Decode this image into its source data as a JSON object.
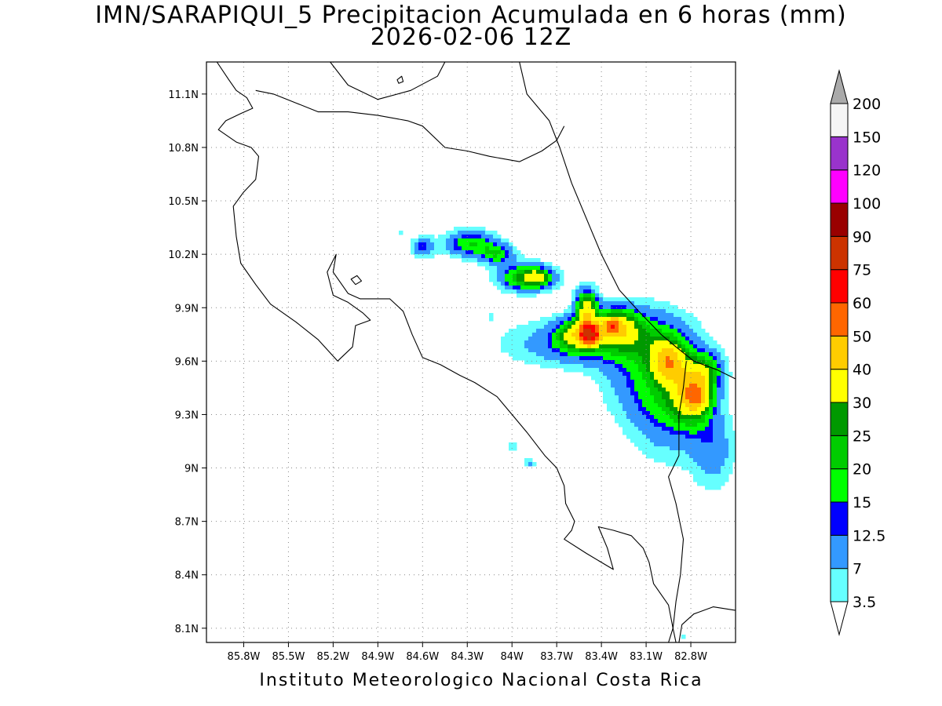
{
  "header": {
    "title_line1": "IMN/SARAPIQUI_5 Precipitacion Acumulada en 6 horas (mm)",
    "title_line2": "2026-02-06 12Z"
  },
  "footer": {
    "credit": "Instituto Meteorologico Nacional Costa Rica"
  },
  "map": {
    "region": "Costa Rica",
    "lon_range": [
      -86.05,
      -82.5
    ],
    "lat_range": [
      8.02,
      11.28
    ],
    "lon_ticks": [
      {
        "value": -85.8,
        "label": "85.8W"
      },
      {
        "value": -85.5,
        "label": "85.5W"
      },
      {
        "value": -85.2,
        "label": "85.2W"
      },
      {
        "value": -84.9,
        "label": "84.9W"
      },
      {
        "value": -84.6,
        "label": "84.6W"
      },
      {
        "value": -84.3,
        "label": "84.3W"
      },
      {
        "value": -84.0,
        "label": "84W"
      },
      {
        "value": -83.7,
        "label": "83.7W"
      },
      {
        "value": -83.4,
        "label": "83.4W"
      },
      {
        "value": -83.1,
        "label": "83.1W"
      },
      {
        "value": -82.8,
        "label": "82.8W"
      }
    ],
    "lat_ticks": [
      {
        "value": 11.1,
        "label": "11.1N"
      },
      {
        "value": 10.8,
        "label": "10.8N"
      },
      {
        "value": 10.5,
        "label": "10.5N"
      },
      {
        "value": 10.2,
        "label": "10.2N"
      },
      {
        "value": 9.9,
        "label": "9.9N"
      },
      {
        "value": 9.6,
        "label": "9.6N"
      },
      {
        "value": 9.3,
        "label": "9.3N"
      },
      {
        "value": 9.0,
        "label": "9N"
      },
      {
        "value": 8.7,
        "label": "8.7N"
      },
      {
        "value": 8.4,
        "label": "8.4N"
      },
      {
        "value": 8.1,
        "label": "8.1N"
      }
    ],
    "grid": "dotted",
    "coastline": [
      [
        -85.98,
        11.28
      ],
      [
        -85.9,
        11.18
      ],
      [
        -85.85,
        11.12
      ],
      [
        -85.78,
        11.08
      ],
      [
        -85.74,
        11.02
      ],
      [
        -85.82,
        10.99
      ],
      [
        -85.92,
        10.95
      ],
      [
        -85.97,
        10.9
      ],
      [
        -85.85,
        10.83
      ],
      [
        -85.75,
        10.8
      ],
      [
        -85.7,
        10.75
      ],
      [
        -85.72,
        10.62
      ],
      [
        -85.8,
        10.55
      ],
      [
        -85.87,
        10.47
      ],
      [
        -85.85,
        10.3
      ],
      [
        -85.82,
        10.15
      ],
      [
        -85.72,
        10.03
      ],
      [
        -85.62,
        9.92
      ],
      [
        -85.45,
        9.82
      ],
      [
        -85.3,
        9.72
      ],
      [
        -85.17,
        9.6
      ],
      [
        -85.07,
        9.68
      ],
      [
        -85.05,
        9.8
      ],
      [
        -84.95,
        9.83
      ],
      [
        -85.0,
        9.87
      ],
      [
        -85.1,
        9.93
      ],
      [
        -85.2,
        9.97
      ],
      [
        -85.24,
        10.1
      ],
      [
        -85.18,
        10.2
      ],
      [
        -85.2,
        10.1
      ],
      [
        -85.1,
        9.98
      ],
      [
        -85.02,
        9.95
      ],
      [
        -84.9,
        9.95
      ],
      [
        -84.82,
        9.95
      ],
      [
        -84.73,
        9.88
      ],
      [
        -84.67,
        9.75
      ],
      [
        -84.6,
        9.62
      ],
      [
        -84.48,
        9.58
      ],
      [
        -84.35,
        9.52
      ],
      [
        -84.25,
        9.48
      ],
      [
        -84.1,
        9.4
      ],
      [
        -84.0,
        9.3
      ],
      [
        -83.9,
        9.2
      ],
      [
        -83.78,
        9.07
      ],
      [
        -83.7,
        9.0
      ],
      [
        -83.65,
        8.9
      ],
      [
        -83.64,
        8.8
      ],
      [
        -83.58,
        8.7
      ],
      [
        -83.6,
        8.65
      ],
      [
        -83.65,
        8.6
      ],
      [
        -83.5,
        8.52
      ],
      [
        -83.4,
        8.47
      ],
      [
        -83.32,
        8.43
      ],
      [
        -83.36,
        8.55
      ],
      [
        -83.42,
        8.67
      ],
      [
        -83.32,
        8.65
      ],
      [
        -83.2,
        8.62
      ],
      [
        -83.12,
        8.55
      ],
      [
        -83.08,
        8.47
      ],
      [
        -83.05,
        8.35
      ],
      [
        -82.95,
        8.23
      ],
      [
        -82.92,
        8.1
      ],
      [
        -82.9,
        8.02
      ]
    ],
    "lake_nicaragua": [
      [
        -85.22,
        11.28
      ],
      [
        -85.1,
        11.15
      ],
      [
        -84.9,
        11.07
      ],
      [
        -84.68,
        11.12
      ],
      [
        -84.5,
        11.2
      ],
      [
        -84.45,
        11.28
      ]
    ],
    "border_north": [
      [
        -85.72,
        11.12
      ],
      [
        -85.6,
        11.1
      ],
      [
        -85.45,
        11.05
      ],
      [
        -85.3,
        11.0
      ],
      [
        -85.1,
        11.0
      ],
      [
        -84.9,
        10.98
      ],
      [
        -84.7,
        10.95
      ],
      [
        -84.6,
        10.92
      ],
      [
        -84.45,
        10.8
      ],
      [
        -84.3,
        10.78
      ],
      [
        -84.15,
        10.75
      ],
      [
        -83.95,
        10.72
      ],
      [
        -83.8,
        10.78
      ],
      [
        -83.7,
        10.84
      ],
      [
        -83.65,
        10.92
      ]
    ],
    "coast_north": [
      [
        -83.95,
        11.28
      ],
      [
        -83.9,
        11.1
      ],
      [
        -83.75,
        10.95
      ],
      [
        -83.68,
        10.8
      ],
      [
        -83.6,
        10.6
      ],
      [
        -83.5,
        10.4
      ],
      [
        -83.4,
        10.2
      ],
      [
        -83.28,
        10.0
      ],
      [
        -83.15,
        9.88
      ],
      [
        -83.0,
        9.75
      ],
      [
        -82.9,
        9.68
      ],
      [
        -82.78,
        9.6
      ],
      [
        -82.62,
        9.55
      ],
      [
        -82.5,
        9.5
      ]
    ],
    "border_south": [
      [
        -82.83,
        9.6
      ],
      [
        -82.85,
        9.45
      ],
      [
        -82.88,
        9.3
      ],
      [
        -82.88,
        9.07
      ],
      [
        -82.95,
        8.95
      ],
      [
        -82.9,
        8.8
      ],
      [
        -82.85,
        8.6
      ],
      [
        -82.87,
        8.4
      ],
      [
        -82.9,
        8.25
      ],
      [
        -82.92,
        8.1
      ],
      [
        -82.95,
        8.02
      ]
    ],
    "coast_panama_south": [
      [
        -82.88,
        8.02
      ],
      [
        -82.86,
        8.12
      ],
      [
        -82.78,
        8.18
      ],
      [
        -82.65,
        8.22
      ],
      [
        -82.5,
        8.2
      ]
    ],
    "islands": [
      [
        [
          -84.77,
          11.18
        ],
        [
          -84.74,
          11.2
        ],
        [
          -84.73,
          11.17
        ],
        [
          -84.76,
          11.16
        ],
        [
          -84.77,
          11.18
        ]
      ],
      [
        [
          -85.08,
          10.06
        ],
        [
          -85.04,
          10.08
        ],
        [
          -85.01,
          10.05
        ],
        [
          -85.05,
          10.03
        ],
        [
          -85.08,
          10.06
        ]
      ]
    ]
  },
  "chart_data": {
    "type": "heatmap",
    "title": "IMN/SARAPIQUI_5 Precipitacion Acumulada en 6 horas (mm)",
    "subtitle": "2026-02-06 12Z",
    "xlabel": "",
    "ylabel": "",
    "units": "mm",
    "colorbar": {
      "placement": "right",
      "levels": [
        3.5,
        7,
        12.5,
        15,
        20,
        25,
        30,
        40,
        50,
        60,
        75,
        90,
        100,
        120,
        150,
        200
      ],
      "labels": [
        "3.5",
        "7",
        "12.5",
        "15",
        "20",
        "25",
        "30",
        "40",
        "50",
        "60",
        "75",
        "90",
        "100",
        "120",
        "150",
        "200"
      ],
      "colors": [
        "#66ffff",
        "#3399ff",
        "#0000ff",
        "#00ff00",
        "#00cc00",
        "#009900",
        "#ffff00",
        "#ffcc00",
        "#ff6600",
        "#ff0000",
        "#cc3300",
        "#990000",
        "#ff00ff",
        "#9933cc",
        "#f5f5f5"
      ],
      "over_color": "#aaaaaa",
      "under_color": "#ffffff"
    },
    "precip_cells": [
      {
        "lon": -84.75,
        "lat": 10.32,
        "slon": 0.02,
        "slat": 0.02,
        "amp": 4
      },
      {
        "lon": -84.6,
        "lat": 10.24,
        "slon": 0.05,
        "slat": 0.04,
        "amp": 14
      },
      {
        "lon": -84.28,
        "lat": 10.26,
        "slon": 0.12,
        "slat": 0.05,
        "amp": 20
      },
      {
        "lon": -84.1,
        "lat": 10.2,
        "slon": 0.08,
        "slat": 0.04,
        "amp": 18
      },
      {
        "lon": -83.9,
        "lat": 10.07,
        "slon": 0.12,
        "slat": 0.05,
        "amp": 30
      },
      {
        "lon": -83.82,
        "lat": 10.07,
        "slon": 0.05,
        "slat": 0.03,
        "amp": 16
      },
      {
        "lon": -84.15,
        "lat": 9.85,
        "slon": 0.02,
        "slat": 0.02,
        "amp": 4
      },
      {
        "lon": -83.5,
        "lat": 9.9,
        "slon": 0.05,
        "slat": 0.07,
        "amp": 34
      },
      {
        "lon": -83.55,
        "lat": 9.75,
        "slon": 0.1,
        "slat": 0.06,
        "amp": 28
      },
      {
        "lon": -83.48,
        "lat": 9.75,
        "slon": 0.04,
        "slat": 0.04,
        "amp": 45
      },
      {
        "lon": -83.5,
        "lat": 9.7,
        "slon": 0.35,
        "slat": 0.09,
        "amp": 14
      },
      {
        "lon": -83.3,
        "lat": 9.8,
        "slon": 0.1,
        "slat": 0.07,
        "amp": 28
      },
      {
        "lon": -83.33,
        "lat": 9.8,
        "slon": 0.04,
        "slat": 0.03,
        "amp": 20
      },
      {
        "lon": -83.1,
        "lat": 9.75,
        "slon": 0.2,
        "slat": 0.12,
        "amp": 12
      },
      {
        "lon": -82.95,
        "lat": 9.6,
        "slon": 0.08,
        "slat": 0.08,
        "amp": 30
      },
      {
        "lon": -82.8,
        "lat": 9.42,
        "slon": 0.1,
        "slat": 0.12,
        "amp": 28
      },
      {
        "lon": -82.75,
        "lat": 9.4,
        "slon": 0.06,
        "slat": 0.06,
        "amp": 20
      },
      {
        "lon": -82.95,
        "lat": 9.35,
        "slon": 0.18,
        "slat": 0.2,
        "amp": 13
      },
      {
        "lon": -82.65,
        "lat": 9.1,
        "slon": 0.1,
        "slat": 0.15,
        "amp": 10
      },
      {
        "lon": -83.1,
        "lat": 9.5,
        "slon": 0.2,
        "slat": 0.15,
        "amp": 10
      },
      {
        "lon": -82.7,
        "lat": 9.55,
        "slon": 0.08,
        "slat": 0.07,
        "amp": 18
      },
      {
        "lon": -84.0,
        "lat": 9.12,
        "slon": 0.025,
        "slat": 0.025,
        "amp": 6
      },
      {
        "lon": -83.88,
        "lat": 9.03,
        "slon": 0.025,
        "slat": 0.02,
        "amp": 8
      },
      {
        "lon": -82.85,
        "lat": 8.05,
        "slon": 0.01,
        "slat": 0.01,
        "amp": 4
      }
    ]
  }
}
